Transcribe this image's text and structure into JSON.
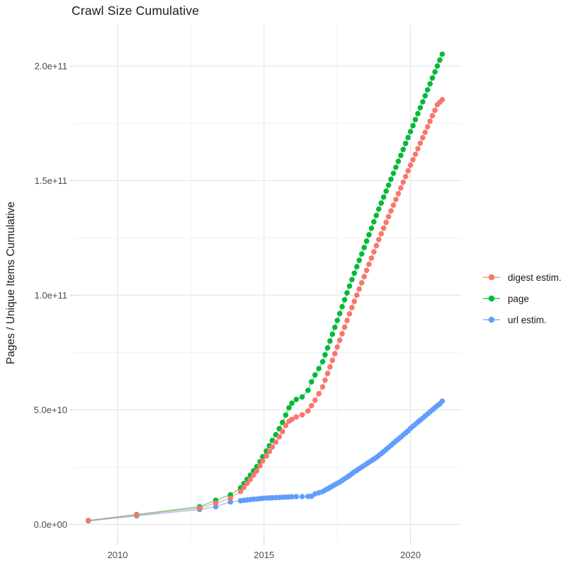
{
  "chart_data": {
    "type": "scatter",
    "title": "Crawl Size Cumulative",
    "xlabel": "",
    "ylabel": "Pages / Unique Items Cumulative",
    "grid": true,
    "legend_position": "right-center",
    "background": "#ffffff",
    "major_grid_color": "#e5e5e5",
    "minor_grid_color": "#f0f0f0",
    "tick_mark_color": "#c9c9c9",
    "tick_label_color": "#4d4d4d",
    "xlim": [
      2008.5,
      2021.75
    ],
    "ylim_e9": [
      -7,
      218
    ],
    "x_ticks": [
      2010,
      2015,
      2020
    ],
    "x_tick_labels": [
      "2010",
      "2015",
      "2020"
    ],
    "x_minor_ticks": [
      2012.5,
      2017.5
    ],
    "y_ticks_e9": [
      0,
      50,
      100,
      150,
      200
    ],
    "y_tick_labels": [
      "0.0e+00",
      "5.0e+10",
      "1.0e+11",
      "1.5e+11",
      "2.0e+11"
    ],
    "y_minor_ticks_e9": [
      25,
      75,
      125,
      175
    ],
    "y_unit_multiplier": 1000000000.0,
    "x": [
      2009.0,
      2010.65,
      2012.8,
      2013.35,
      2013.85,
      2014.2,
      2014.31,
      2014.42,
      2014.53,
      2014.64,
      2014.75,
      2014.86,
      2014.95,
      2015.08,
      2015.18,
      2015.28,
      2015.4,
      2015.52,
      2015.63,
      2015.74,
      2015.85,
      2015.95,
      2016.1,
      2016.3,
      2016.5,
      2016.62,
      2016.74,
      2016.87,
      2017.0,
      2017.083,
      2017.167,
      2017.25,
      2017.333,
      2017.417,
      2017.5,
      2017.583,
      2017.667,
      2017.75,
      2017.833,
      2017.917,
      2018.0,
      2018.083,
      2018.167,
      2018.25,
      2018.333,
      2018.417,
      2018.5,
      2018.583,
      2018.667,
      2018.75,
      2018.833,
      2018.917,
      2019.0,
      2019.083,
      2019.167,
      2019.25,
      2019.333,
      2019.417,
      2019.5,
      2019.583,
      2019.667,
      2019.75,
      2019.833,
      2019.917,
      2020.0,
      2020.083,
      2020.167,
      2020.25,
      2020.333,
      2020.417,
      2020.5,
      2020.583,
      2020.667,
      2020.75,
      2020.833,
      2020.917,
      2021.0,
      2021.083
    ],
    "series": [
      {
        "name": "digest estim.",
        "color": "#F8766D",
        "values_e9": [
          1.6,
          4.1,
          7.1,
          9.3,
          11.4,
          14.4,
          16.1,
          17.9,
          19.6,
          21.5,
          23.3,
          25.5,
          27.7,
          29.8,
          31.8,
          33.8,
          35.9,
          38.2,
          40.5,
          43.2,
          45.0,
          45.8,
          46.9,
          47.8,
          49.5,
          51.8,
          54.2,
          57.0,
          60.0,
          62.9,
          65.8,
          68.7,
          71.6,
          74.5,
          77.4,
          80.3,
          83.2,
          86.1,
          89.0,
          91.9,
          94.6,
          97.3,
          100.0,
          102.7,
          105.4,
          108.1,
          110.8,
          113.5,
          116.2,
          118.9,
          121.6,
          124.3,
          126.8,
          129.3,
          131.8,
          134.3,
          136.8,
          139.3,
          141.8,
          144.3,
          146.8,
          149.3,
          151.8,
          154.3,
          156.7,
          159.1,
          161.5,
          163.9,
          166.3,
          168.7,
          171.1,
          173.5,
          175.9,
          178.3,
          180.7,
          183.1,
          184.2,
          185.3
        ]
      },
      {
        "name": "page",
        "color": "#00BA38",
        "values_e9": [
          1.7,
          4.3,
          7.7,
          10.5,
          12.9,
          16.0,
          17.8,
          19.7,
          21.5,
          23.4,
          25.2,
          27.4,
          29.5,
          32.0,
          34.3,
          36.6,
          39.1,
          41.8,
          44.5,
          47.7,
          50.9,
          52.9,
          54.5,
          55.6,
          58.5,
          62.2,
          65.2,
          68.0,
          71.0,
          74.0,
          77.0,
          80.0,
          83.0,
          86.0,
          89.0,
          92.0,
          95.0,
          98.0,
          101.0,
          104.0,
          106.8,
          109.6,
          112.4,
          115.2,
          118.0,
          120.8,
          123.6,
          126.4,
          129.2,
          132.0,
          134.8,
          137.6,
          140.2,
          142.8,
          145.4,
          148.0,
          150.6,
          153.2,
          155.8,
          158.4,
          161.0,
          163.6,
          166.2,
          168.8,
          171.4,
          174.0,
          176.6,
          179.2,
          181.8,
          184.4,
          187.0,
          189.6,
          192.2,
          194.8,
          197.4,
          200.0,
          202.6,
          205.2
        ]
      },
      {
        "name": "url estim.",
        "color": "#619CFF",
        "values_e9": [
          1.5,
          3.7,
          6.5,
          7.7,
          9.8,
          10.3,
          10.5,
          10.7,
          10.85,
          11.0,
          11.1,
          11.25,
          11.4,
          11.5,
          11.55,
          11.6,
          11.7,
          11.75,
          11.85,
          11.9,
          12.0,
          12.05,
          12.1,
          12.15,
          12.2,
          12.25,
          13.3,
          13.8,
          14.3,
          14.9,
          15.5,
          16.1,
          16.7,
          17.3,
          17.9,
          18.5,
          19.2,
          19.9,
          20.6,
          21.3,
          22.1,
          22.9,
          23.6,
          24.3,
          25.0,
          25.7,
          26.4,
          27.1,
          27.8,
          28.5,
          29.2,
          30.0,
          30.9,
          31.8,
          32.7,
          33.6,
          34.5,
          35.4,
          36.3,
          37.2,
          38.1,
          39.0,
          39.9,
          40.8,
          41.9,
          42.8,
          43.7,
          44.6,
          45.5,
          46.4,
          47.3,
          48.2,
          49.1,
          50.0,
          50.9,
          51.8,
          52.6,
          53.8
        ]
      }
    ]
  }
}
